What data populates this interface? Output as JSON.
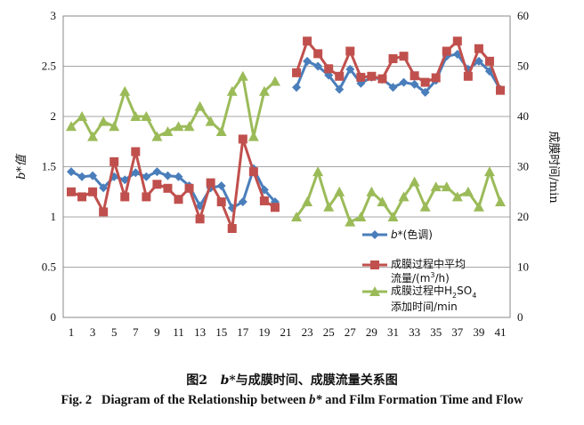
{
  "chart_data": {
    "type": "line",
    "x": [
      1,
      2,
      3,
      4,
      5,
      6,
      7,
      8,
      9,
      10,
      11,
      12,
      13,
      14,
      15,
      16,
      17,
      18,
      19,
      20,
      21,
      22,
      23,
      24,
      25,
      26,
      27,
      28,
      29,
      30,
      31,
      32,
      33,
      34,
      35,
      36,
      37,
      38,
      39,
      40,
      41
    ],
    "xticks": [
      "1",
      "3",
      "5",
      "7",
      "9",
      "11",
      "13",
      "15",
      "17",
      "19",
      "21",
      "23",
      "25",
      "27",
      "29",
      "31",
      "33",
      "35",
      "37",
      "39",
      "41"
    ],
    "y_left": {
      "label": "b*值",
      "ylim": [
        0,
        3
      ],
      "ticks": [
        "0",
        "0.5",
        "1",
        "1.5",
        "2",
        "2.5",
        "3"
      ]
    },
    "y_right": {
      "label": "成膜时间/min",
      "ylim": [
        0,
        60
      ],
      "ticks": [
        "0",
        "10",
        "20",
        "30",
        "40",
        "50",
        "60"
      ]
    },
    "grid": "horizontal",
    "legend_position": "inside-right",
    "series": [
      {
        "name": "b*(色调)",
        "axis": "left",
        "color": "#4a7ebb",
        "marker": "diamond",
        "values": [
          1.45,
          1.4,
          1.41,
          1.29,
          1.4,
          1.37,
          1.44,
          1.4,
          1.45,
          1.41,
          1.4,
          1.31,
          1.11,
          1.29,
          1.31,
          1.09,
          1.15,
          1.48,
          1.27,
          1.15,
          null,
          2.29,
          2.55,
          2.5,
          2.41,
          2.27,
          2.47,
          2.33,
          2.39,
          2.37,
          2.29,
          2.34,
          2.32,
          2.24,
          2.36,
          2.6,
          2.62,
          2.47,
          2.55,
          2.45,
          2.27
        ]
      },
      {
        "name": "成膜过程中平均流量/(m3/h)",
        "axis": "right",
        "color": "#c0504d",
        "marker": "square",
        "values": [
          25,
          24,
          25,
          21,
          31,
          24,
          33,
          24,
          26.5,
          25.7,
          23.5,
          25.7,
          19.6,
          26.8,
          23,
          17.7,
          35.5,
          29,
          23.2,
          21.9,
          null,
          48.7,
          55,
          52.5,
          49.5,
          48,
          53,
          47.8,
          48,
          47.5,
          51.5,
          52,
          48.1,
          46.8,
          47.7,
          53,
          55,
          48,
          53.5,
          51,
          45.2
        ]
      },
      {
        "name": "成膜过程中H2SO4添加时间/min",
        "axis": "right",
        "color": "#9bbb59",
        "marker": "triangle",
        "values": [
          38,
          40,
          36,
          39,
          38,
          45,
          40,
          40,
          36,
          37,
          38,
          38,
          42,
          39,
          37,
          45,
          48,
          36,
          45,
          47,
          null,
          20,
          23,
          29,
          22,
          25,
          19,
          20,
          25,
          23,
          20,
          24,
          27,
          22,
          26,
          26,
          24,
          25,
          22,
          29,
          23
        ]
      }
    ],
    "legend": {
      "b_label": "b*",
      "b_suffix": "(色调)",
      "flow_line1": "成膜过程中平均",
      "flow_line2_prefix": "流量/(m",
      "flow_line2_sup": "3",
      "flow_line2_suffix": "/h)",
      "acid_line1_prefix": "成膜过程中H",
      "acid_line1_sub1": "2",
      "acid_line1_mid": "SO",
      "acid_line1_sub2": "4",
      "acid_line2": "添加时间/min"
    }
  },
  "caption": {
    "cn_prefix": "图2",
    "cn_b": "b*",
    "cn_rest": "与成膜时间、成膜流量关系图",
    "en_prefix": "Fig. 2   Diagram of the Relationship between ",
    "en_b": "b*",
    "en_rest": " and Film Formation Time and Flow"
  }
}
